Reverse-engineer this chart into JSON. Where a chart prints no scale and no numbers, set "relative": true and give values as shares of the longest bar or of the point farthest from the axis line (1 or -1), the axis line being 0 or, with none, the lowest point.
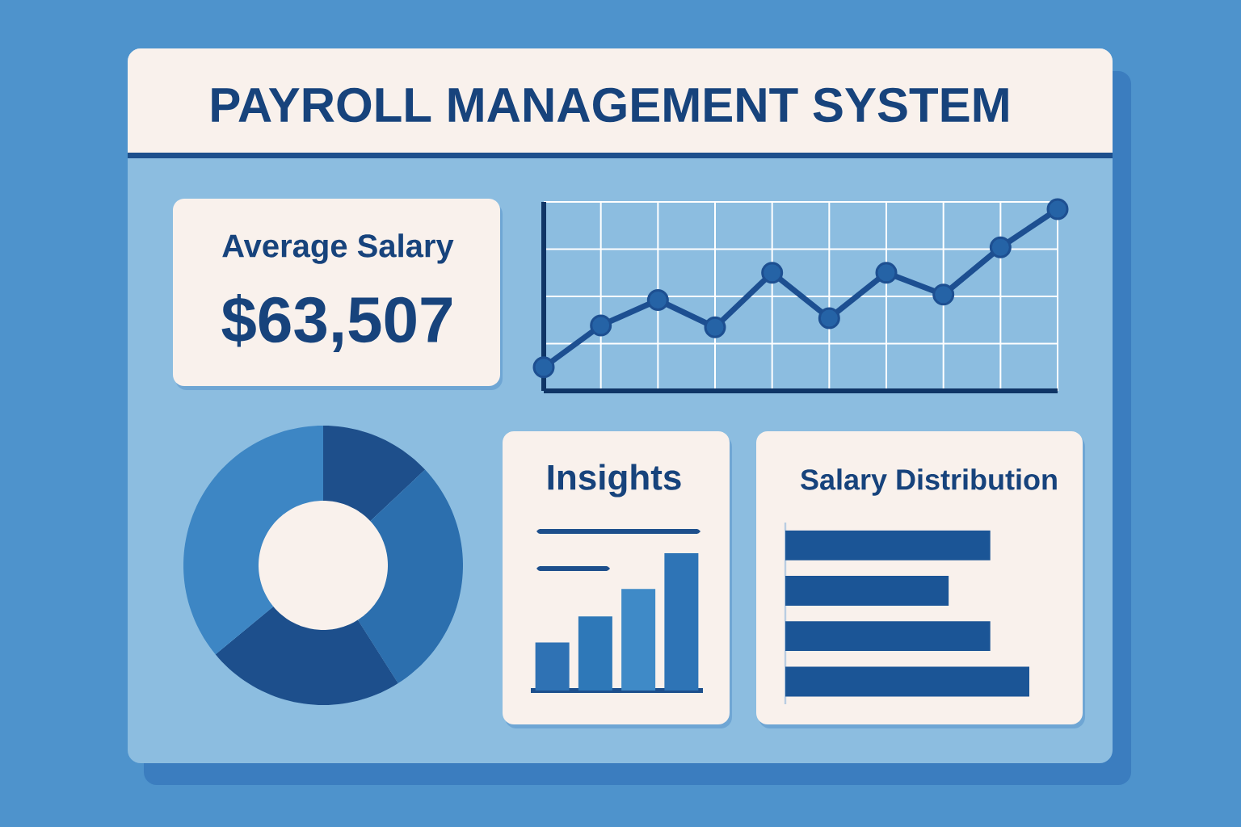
{
  "chart_data": [
    {
      "type": "other",
      "title": "PAYROLL MANAGEMENT SYSTEM"
    },
    {
      "type": "other",
      "title": "Average Salary",
      "annotations": [
        "$63,507"
      ]
    },
    {
      "type": "line",
      "relative": true,
      "grid": true,
      "marker": "circle",
      "categories": [
        null,
        null,
        null,
        null,
        null,
        null,
        null,
        null,
        null,
        null
      ],
      "series": [
        {
          "color": "#1d4f91",
          "values": [
            0.13,
            0.36,
            0.5,
            0.35,
            0.65,
            0.4,
            0.65,
            0.53,
            0.79,
            1
          ]
        }
      ]
    },
    {
      "type": "donut",
      "categories": [
        null,
        null,
        null,
        null
      ],
      "values": [
        13,
        28,
        23,
        36
      ],
      "colors": [
        "#1e4f8b",
        "#2c6fae",
        "#1d4f8c",
        "#3d86c4"
      ]
    },
    {
      "type": "bar",
      "title": "Insights",
      "relative": true,
      "categories": [
        null,
        null,
        null,
        null
      ],
      "values": [
        0.35,
        0.54,
        0.74,
        1
      ],
      "colors": [
        "#2f72b4",
        "#2e78b8",
        "#3f8ac7",
        "#2e74b6"
      ]
    },
    {
      "type": "bar",
      "orientation": "horizontal",
      "title": "Salary Distribution",
      "relative": true,
      "categories": [
        null,
        null,
        null,
        null
      ],
      "values": [
        0.84,
        0.67,
        0.84,
        1
      ],
      "color": "#1b5596"
    }
  ]
}
